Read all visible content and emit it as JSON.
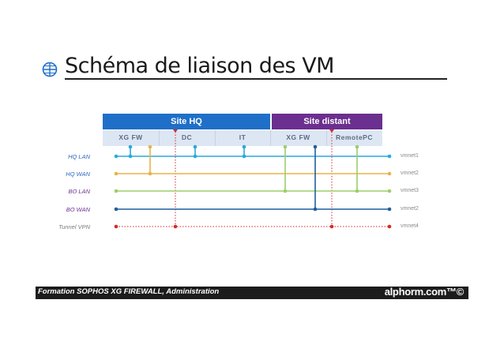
{
  "title": "Schéma de liaison des VM",
  "sites": {
    "hq": "Site HQ",
    "remote": "Site distant"
  },
  "nodes": [
    "XG FW",
    "DC",
    "IT",
    "XG FW",
    "RemotePC"
  ],
  "networks": [
    {
      "name": "HQ LAN",
      "vmnet": "vmnet1",
      "color": "#29a8e0"
    },
    {
      "name": "HQ WAN",
      "vmnet": "vmnet2",
      "color": "#e8b34a"
    },
    {
      "name": "BO LAN",
      "vmnet": "vmnet3",
      "color": "#9bcf6a"
    },
    {
      "name": "BO WAN",
      "vmnet": "vmnet2",
      "color": "#1f5fa0"
    },
    {
      "name": "Tunnel VPN",
      "vmnet": "vmnet4",
      "color": "#d42a2a"
    }
  ],
  "colors": {
    "site_hq": "#1f6fc8",
    "site_remote": "#6b2f8f",
    "nodes_bg": "#dde6f3",
    "label_hq": "#2a6bbf",
    "label_bo": "#6b2f8f",
    "label_vpn": "#7a7a7a"
  },
  "footer": {
    "text": "Formation SOPHOS XG FIREWALL, Administration",
    "brand": "alphorm.com™©"
  }
}
